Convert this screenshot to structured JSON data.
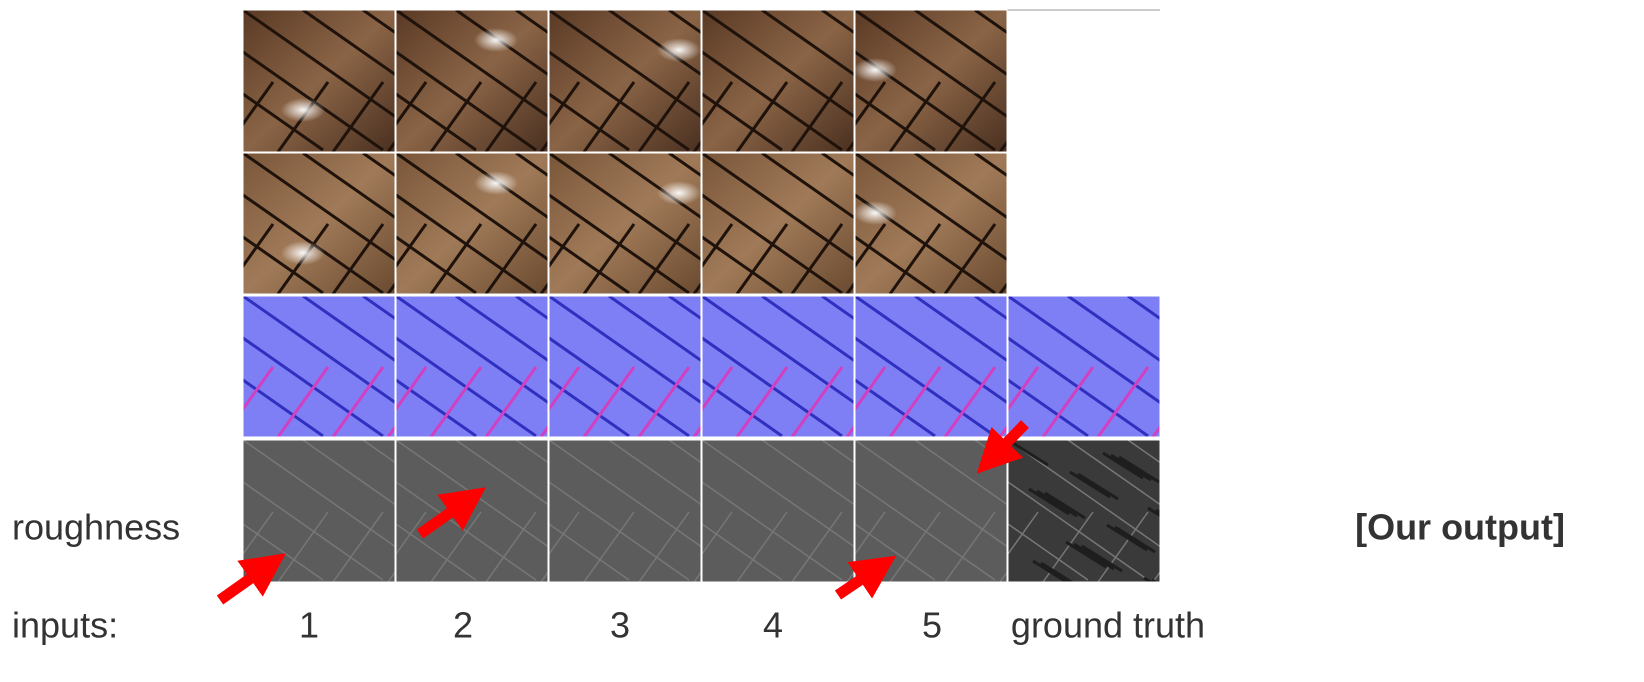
{
  "labels": {
    "row_label": "roughness",
    "output_note": "[Our output]",
    "inputs_label": "inputs:",
    "columns": [
      "1",
      "2",
      "3",
      "4",
      "5",
      "ground truth"
    ]
  }
}
